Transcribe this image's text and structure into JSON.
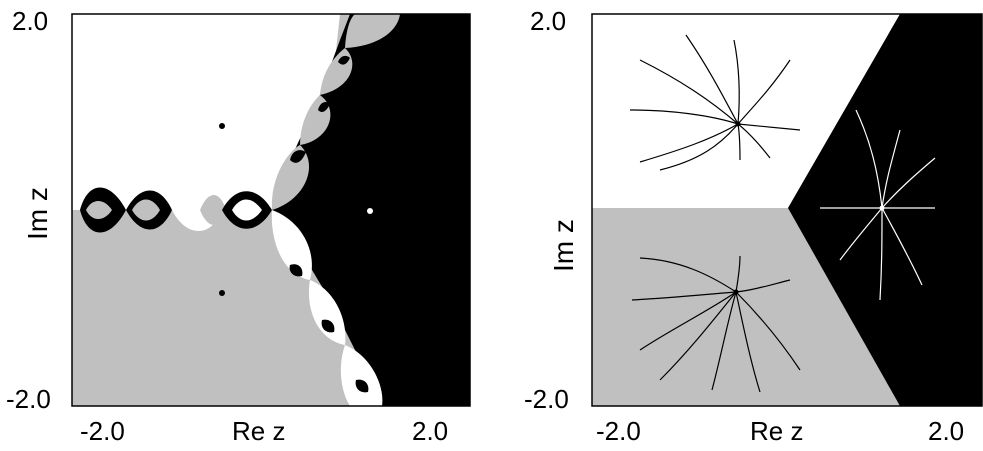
{
  "panels": [
    {
      "ylabel": "Im z",
      "xlabel": "Re z",
      "y_top": "2.0",
      "y_bottom": "-2.0",
      "x_left": "-2.0",
      "x_right": "2.0"
    },
    {
      "ylabel": "Im z",
      "xlabel": "Re z",
      "y_top": "2.0",
      "y_bottom": "-2.0",
      "x_left": "-2.0",
      "x_right": "2.0"
    }
  ],
  "colors": {
    "basin_root_1": "#000000",
    "basin_root_2": "#ffffff",
    "basin_root_3": "#c0c0c0",
    "frame": "#000000"
  }
}
